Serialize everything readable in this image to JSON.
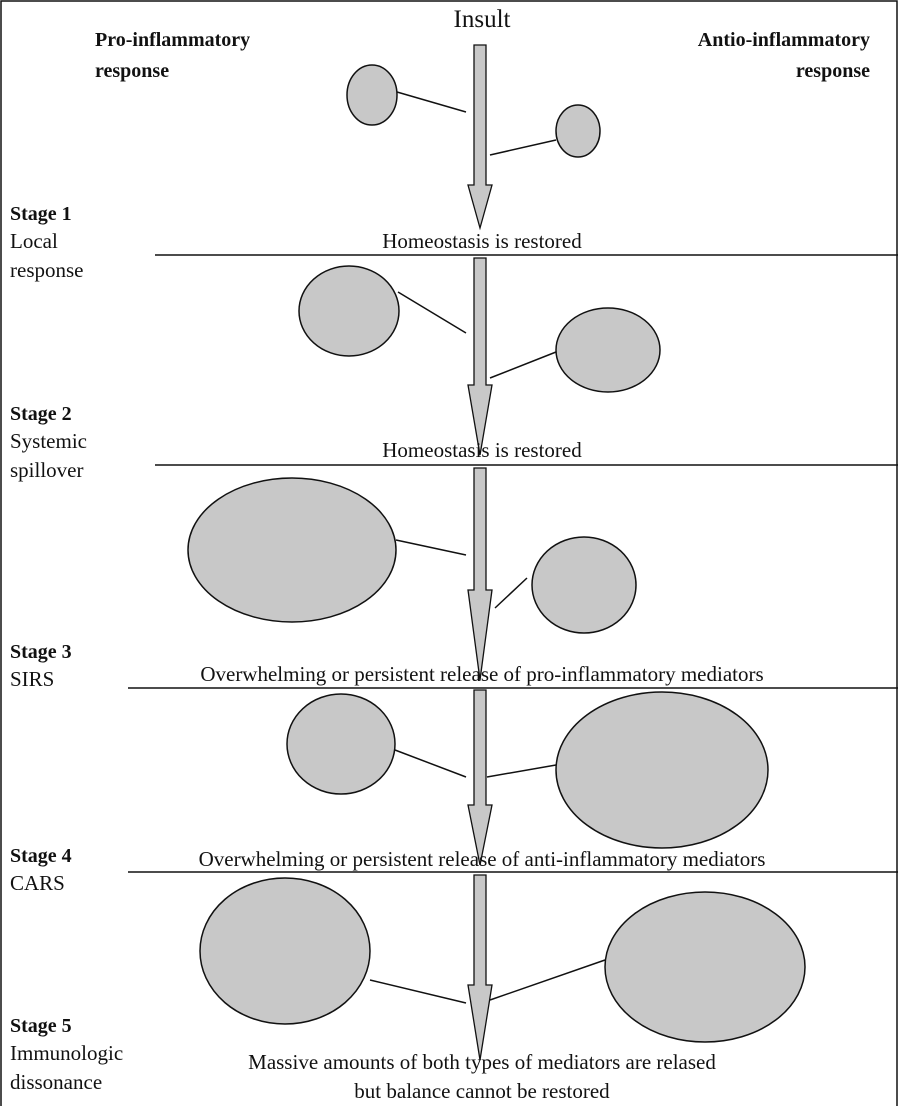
{
  "header": {
    "insult": "Insult",
    "pro": [
      "Pro-inflammatory",
      "response"
    ],
    "anti": [
      "Antio-inflammatory",
      "response"
    ]
  },
  "stages": [
    {
      "title": "Stage 1",
      "name": [
        "Local",
        "response"
      ],
      "outcome": [
        "Homeostasis is restored"
      ]
    },
    {
      "title": "Stage 2",
      "name": [
        "Systemic",
        "spillover"
      ],
      "outcome": [
        "Homeostasis is restored"
      ]
    },
    {
      "title": "Stage 3",
      "name": [
        "SIRS"
      ],
      "outcome": [
        "Overwhelming or persistent release of pro-inflammatory mediators"
      ]
    },
    {
      "title": "Stage 4",
      "name": [
        "CARS"
      ],
      "outcome": [
        "Overwhelming or persistent release of anti-inflammatory mediators"
      ]
    },
    {
      "title": "Stage 5",
      "name": [
        "Immunologic",
        "dissonance"
      ],
      "outcome": [
        "Massive amounts of both types of mediators are relased",
        "but balance cannot be restored"
      ]
    }
  ]
}
